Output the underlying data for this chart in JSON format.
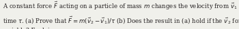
{
  "text_lines": [
    "A constant force $\\vec{F}$ acting on a particle of mass $m$ changes the velocity from $\\vec{v}_1$ to $\\vec{v}_2$ in",
    "time $\\tau$. (a) Prove that $\\vec{F} = m(\\vec{v}_2 - \\vec{v}_1)/\\tau$ (b) Does the result in (a) hold if the $\\vec{v}_2$ force is",
    "variable? Explain."
  ],
  "fontsize": 6.2,
  "text_color": "#231f20",
  "background_color": "#f0f0eb",
  "font_family": "serif",
  "linespacing": 1.45
}
